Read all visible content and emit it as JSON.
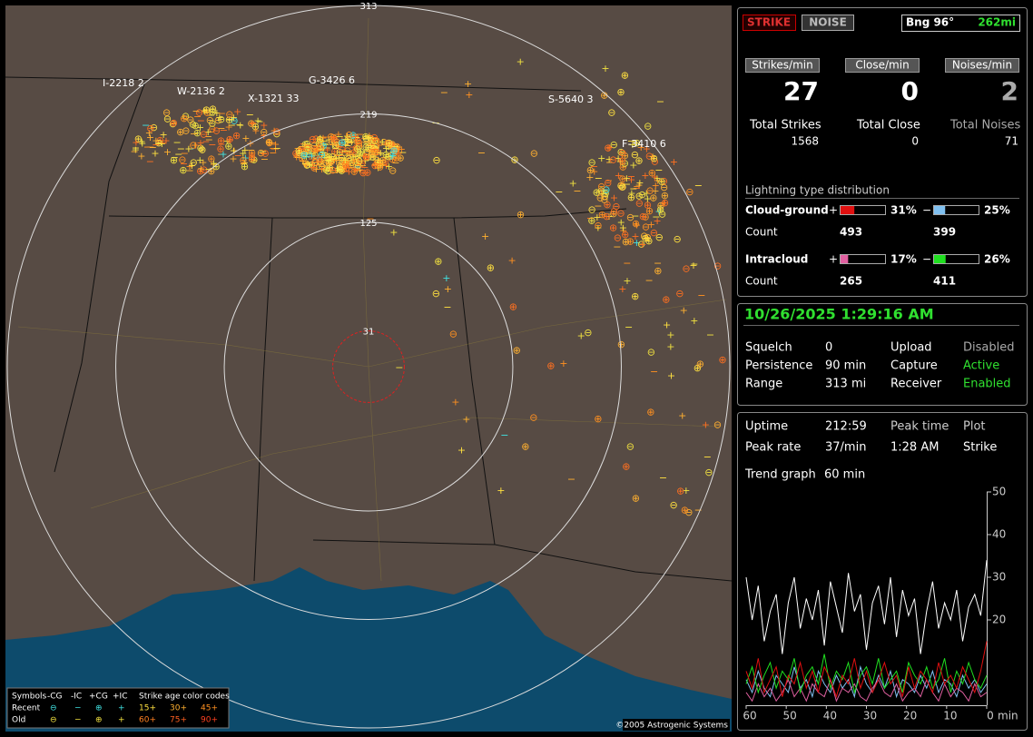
{
  "map": {
    "range_labels": [
      313,
      219,
      125,
      31
    ],
    "stations": [
      "I-2218 2",
      "W-2136 2",
      "X-1321 33",
      "G-3426 6",
      "S-5640 3",
      "F-3410 6"
    ],
    "copyright": "©2005 Astrogenic Systems",
    "legend": {
      "title": "Symbols",
      "columns": [
        "-CG",
        "-IC",
        "+CG",
        "+IC"
      ],
      "age_title": "Strike age color codes",
      "rows": [
        "Recent",
        "Old"
      ],
      "ages": [
        [
          "15+",
          "30+",
          "45+"
        ],
        [
          "60+",
          "75+",
          "90+"
        ]
      ]
    }
  },
  "header": {
    "buttons": [
      "STRIKE",
      "NOISE"
    ],
    "bearing": "Bng 96°",
    "distance": "262mi"
  },
  "rates": [
    {
      "label": "Strikes/min",
      "value": 27
    },
    {
      "label": "Close/min",
      "value": 0
    },
    {
      "label": "Noises/min",
      "value": 2
    }
  ],
  "totals": [
    {
      "label": "Total Strikes",
      "value": 1568
    },
    {
      "label": "Total Close",
      "value": 0
    },
    {
      "label": "Total Noises",
      "value": 71
    }
  ],
  "distribution": {
    "title": "Lightning type distribution",
    "count_label": "Count",
    "groups": [
      {
        "name": "Cloud-ground",
        "items": [
          {
            "sign": "+",
            "value": 31,
            "label": "31%",
            "count": 493,
            "color": "#e01010"
          },
          {
            "sign": "−",
            "value": 25,
            "label": "25%",
            "count": 399,
            "color": "#80c0f0"
          }
        ]
      },
      {
        "name": "Intracloud",
        "items": [
          {
            "sign": "+",
            "value": 17,
            "label": "17%",
            "count": 265,
            "color": "#e060a0"
          },
          {
            "sign": "−",
            "value": 26,
            "label": "26%",
            "count": 411,
            "color": "#20e020"
          }
        ]
      }
    ]
  },
  "status": {
    "datetime": "10/26/2025 1:29:16 AM",
    "rows": [
      [
        "Squelch",
        "0",
        "Upload",
        "Disabled"
      ],
      [
        "Persistence",
        "90 min",
        "Capture",
        "Active"
      ],
      [
        "Range",
        "313 mi",
        "Receiver",
        "Enabled"
      ]
    ]
  },
  "stats": {
    "rows": [
      [
        "Uptime",
        "212:59",
        "Peak time",
        "Plot"
      ],
      [
        "Peak rate",
        "37/min",
        "1:28 AM",
        "Strike"
      ]
    ],
    "trend_label": "Trend graph",
    "trend_span": "60 min"
  },
  "trend": {
    "xlim": [
      60,
      0
    ],
    "xticks": [
      60,
      50,
      40,
      30,
      20,
      10,
      0
    ],
    "x_unit": "min",
    "ylim": [
      0,
      50
    ],
    "yticks": [
      20,
      30,
      40,
      50
    ],
    "x": [
      60,
      58.5,
      57,
      55.5,
      54,
      52.5,
      51,
      49.5,
      48,
      46.5,
      45,
      43.5,
      42,
      40.5,
      39,
      37.5,
      36,
      34.5,
      33,
      31.5,
      30,
      28.5,
      27,
      25.5,
      24,
      22.5,
      21,
      19.5,
      18,
      16.5,
      15,
      13.5,
      12,
      10.5,
      9,
      7.5,
      6,
      4.5,
      3,
      1.5,
      0
    ],
    "series": [
      {
        "color": "#80c0f0",
        "values": [
          6,
          3,
          8,
          4,
          2,
          7,
          5,
          3,
          9,
          4,
          6,
          2,
          8,
          5,
          3,
          7,
          4,
          6,
          2,
          9,
          5,
          3,
          7,
          4,
          8,
          2,
          6,
          5,
          3,
          7,
          4,
          8,
          3,
          6,
          5,
          2,
          7,
          4,
          6,
          3,
          5
        ]
      },
      {
        "color": "#e060a0",
        "values": [
          3,
          1,
          5,
          2,
          4,
          1,
          3,
          6,
          2,
          4,
          1,
          5,
          3,
          2,
          6,
          1,
          4,
          3,
          5,
          2,
          1,
          4,
          6,
          3,
          2,
          5,
          1,
          3,
          4,
          2,
          6,
          3,
          1,
          5,
          2,
          4,
          3,
          1,
          5,
          2,
          3
        ]
      },
      {
        "color": "#20e020",
        "values": [
          5,
          9,
          3,
          7,
          10,
          4,
          8,
          6,
          11,
          3,
          7,
          9,
          5,
          12,
          4,
          8,
          6,
          10,
          3,
          7,
          9,
          5,
          11,
          4,
          6,
          8,
          3,
          10,
          7,
          5,
          9,
          4,
          6,
          11,
          3,
          8,
          5,
          10,
          6,
          4,
          7
        ]
      },
      {
        "color": "#e01010",
        "values": [
          8,
          4,
          11,
          3,
          6,
          9,
          2,
          7,
          5,
          10,
          4,
          8,
          3,
          9,
          6,
          2,
          7,
          5,
          11,
          4,
          8,
          3,
          6,
          10,
          5,
          7,
          2,
          9,
          4,
          8,
          6,
          3,
          10,
          5,
          7,
          4,
          9,
          6,
          3,
          8,
          15
        ]
      },
      {
        "color": "#ffffff",
        "values": [
          30,
          20,
          28,
          15,
          22,
          26,
          12,
          24,
          30,
          18,
          25,
          20,
          27,
          14,
          29,
          23,
          17,
          31,
          22,
          26,
          13,
          24,
          28,
          19,
          30,
          16,
          27,
          21,
          25,
          12,
          22,
          29,
          18,
          24,
          20,
          27,
          15,
          23,
          26,
          21,
          34
        ]
      }
    ]
  }
}
